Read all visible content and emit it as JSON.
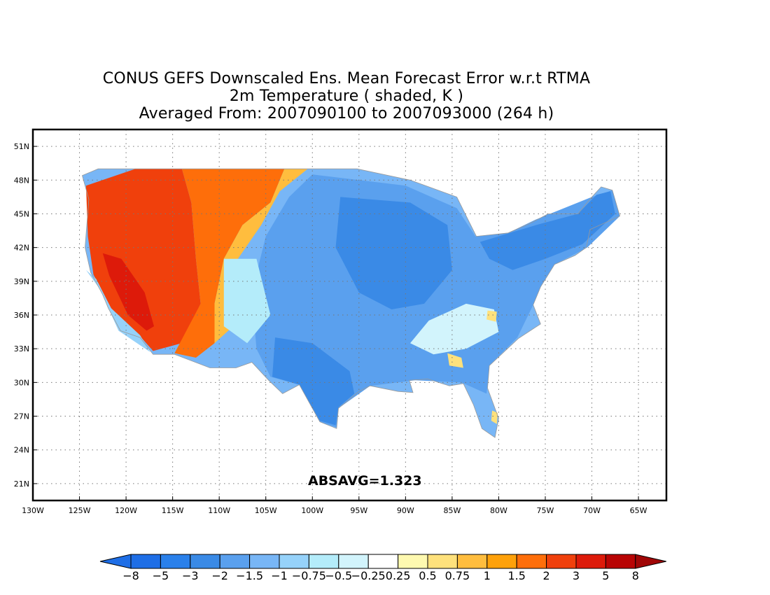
{
  "title": {
    "line1": "CONUS GEFS Downscaled Ens. Mean Forecast Error w.r.t RTMA",
    "line2": "2m Temperature ( shaded, K )",
    "line3": "Averaged From: 2007090100 to 2007093000 (264 h)"
  },
  "stat_text": "ABSAVG=1.323",
  "map": {
    "lon_range": [
      -130,
      -62
    ],
    "lat_range": [
      19.5,
      52.5
    ],
    "lon_ticks": [
      {
        "value": -130,
        "label": "130W"
      },
      {
        "value": -125,
        "label": "125W"
      },
      {
        "value": -120,
        "label": "120W"
      },
      {
        "value": -115,
        "label": "115W"
      },
      {
        "value": -110,
        "label": "110W"
      },
      {
        "value": -105,
        "label": "105W"
      },
      {
        "value": -100,
        "label": "100W"
      },
      {
        "value": -95,
        "label": "95W"
      },
      {
        "value": -90,
        "label": "90W"
      },
      {
        "value": -85,
        "label": "85W"
      },
      {
        "value": -80,
        "label": "80W"
      },
      {
        "value": -75,
        "label": "75W"
      },
      {
        "value": -70,
        "label": "70W"
      },
      {
        "value": -65,
        "label": "65W"
      }
    ],
    "lat_ticks": [
      {
        "value": 21,
        "label": "21N"
      },
      {
        "value": 24,
        "label": "24N"
      },
      {
        "value": 27,
        "label": "27N"
      },
      {
        "value": 30,
        "label": "30N"
      },
      {
        "value": 33,
        "label": "33N"
      },
      {
        "value": 36,
        "label": "36N"
      },
      {
        "value": 39,
        "label": "39N"
      },
      {
        "value": 42,
        "label": "42N"
      },
      {
        "value": 45,
        "label": "45N"
      },
      {
        "value": 48,
        "label": "48N"
      },
      {
        "value": 51,
        "label": "51N"
      }
    ],
    "grid": true,
    "conus_outline": [
      [
        -124.7,
        48.4
      ],
      [
        -123.0,
        49.0
      ],
      [
        -95.2,
        49.0
      ],
      [
        -89.5,
        48.0
      ],
      [
        -84.5,
        46.5
      ],
      [
        -82.4,
        43.0
      ],
      [
        -79.0,
        43.3
      ],
      [
        -76.5,
        44.2
      ],
      [
        -74.7,
        45.0
      ],
      [
        -71.5,
        45.0
      ],
      [
        -70.0,
        46.5
      ],
      [
        -69.0,
        47.4
      ],
      [
        -67.8,
        47.1
      ],
      [
        -67.0,
        44.8
      ],
      [
        -70.2,
        43.6
      ],
      [
        -70.6,
        42.0
      ],
      [
        -71.8,
        41.3
      ],
      [
        -74.0,
        40.5
      ],
      [
        -75.5,
        38.5
      ],
      [
        -76.3,
        36.9
      ],
      [
        -75.5,
        35.2
      ],
      [
        -77.9,
        33.9
      ],
      [
        -81.0,
        31.5
      ],
      [
        -81.2,
        29.5
      ],
      [
        -80.0,
        26.8
      ],
      [
        -80.4,
        25.1
      ],
      [
        -81.8,
        25.9
      ],
      [
        -82.7,
        28.0
      ],
      [
        -83.8,
        29.9
      ],
      [
        -85.3,
        29.7
      ],
      [
        -87.6,
        30.3
      ],
      [
        -89.6,
        30.2
      ],
      [
        -89.2,
        29.1
      ],
      [
        -90.8,
        29.2
      ],
      [
        -93.8,
        29.7
      ],
      [
        -95.0,
        29.2
      ],
      [
        -97.2,
        27.7
      ],
      [
        -97.4,
        25.9
      ],
      [
        -99.2,
        26.5
      ],
      [
        -101.4,
        29.8
      ],
      [
        -103.2,
        29.0
      ],
      [
        -104.7,
        30.2
      ],
      [
        -106.5,
        31.8
      ],
      [
        -108.2,
        31.3
      ],
      [
        -111.0,
        31.3
      ],
      [
        -114.8,
        32.5
      ],
      [
        -117.1,
        32.5
      ],
      [
        -118.5,
        34.0
      ],
      [
        -120.6,
        34.6
      ],
      [
        -121.9,
        36.6
      ],
      [
        -122.5,
        37.8
      ],
      [
        -123.8,
        39.8
      ],
      [
        -124.4,
        42.0
      ],
      [
        -124.0,
        46.3
      ],
      [
        -124.7,
        48.4
      ]
    ],
    "error_regions": [
      {
        "level": "2 to 3",
        "color": "#f0400c",
        "polygon": [
          [
            -124.3,
            47.5
          ],
          [
            -119,
            49
          ],
          [
            -114,
            49
          ],
          [
            -113,
            46
          ],
          [
            -112.5,
            41
          ],
          [
            -112,
            37
          ],
          [
            -114,
            33.5
          ],
          [
            -117.1,
            32.8
          ],
          [
            -118.7,
            34.3
          ],
          [
            -121.6,
            36.6
          ],
          [
            -123.5,
            39.6
          ],
          [
            -124.1,
            43
          ]
        ]
      },
      {
        "level": "1.5 to 2",
        "color": "#fe6e0a",
        "polygon": [
          [
            -114,
            49
          ],
          [
            -103,
            49
          ],
          [
            -104.5,
            46
          ],
          [
            -107.5,
            44
          ],
          [
            -109.5,
            41
          ],
          [
            -110.5,
            37
          ],
          [
            -110.5,
            33.5
          ],
          [
            -112.5,
            32.2
          ],
          [
            -114.8,
            32.6
          ],
          [
            -112,
            37
          ],
          [
            -112.5,
            41
          ],
          [
            -113,
            46
          ]
        ]
      },
      {
        "level": "0.75 to 1",
        "color": "#ffbd3e",
        "polygon": [
          [
            -103,
            49
          ],
          [
            -100.5,
            49
          ],
          [
            -103.5,
            47
          ],
          [
            -105.5,
            44
          ],
          [
            -108,
            41
          ],
          [
            -107,
            37.5
          ],
          [
            -108.5,
            35
          ],
          [
            -110.5,
            33.5
          ],
          [
            -110.5,
            37
          ],
          [
            -109.5,
            41
          ],
          [
            -107.5,
            44
          ],
          [
            -104.5,
            46
          ]
        ]
      },
      {
        "level": "3 to 5",
        "color": "#dd1a0a",
        "polygon": [
          [
            -122.5,
            41.5
          ],
          [
            -120.5,
            41
          ],
          [
            -118,
            38
          ],
          [
            -117,
            35
          ],
          [
            -117.8,
            34.6
          ],
          [
            -119.8,
            36
          ],
          [
            -121.8,
            39.5
          ]
        ]
      },
      {
        "level": "-2 to -1.5",
        "color": "#5aa0ee",
        "polygon": [
          [
            -100,
            48.5
          ],
          [
            -90,
            47.5
          ],
          [
            -84.5,
            45.5
          ],
          [
            -82.5,
            43
          ],
          [
            -79,
            43.3
          ],
          [
            -76,
            44.5
          ],
          [
            -70,
            46.5
          ],
          [
            -67.8,
            47.1
          ],
          [
            -67,
            44.8
          ],
          [
            -70.5,
            42
          ],
          [
            -74,
            40.5
          ],
          [
            -75.5,
            38.5
          ],
          [
            -76.3,
            36.9
          ],
          [
            -78,
            34
          ],
          [
            -81,
            31.5
          ],
          [
            -81.3,
            29
          ],
          [
            -84,
            30
          ],
          [
            -89,
            30.2
          ],
          [
            -93.8,
            29.7
          ],
          [
            -97.2,
            27.7
          ],
          [
            -97.4,
            26
          ],
          [
            -99.2,
            26.5
          ],
          [
            -101.4,
            29.8
          ],
          [
            -104.5,
            30.5
          ],
          [
            -106,
            33
          ],
          [
            -106.5,
            38
          ],
          [
            -105,
            43
          ],
          [
            -102.5,
            46.5
          ]
        ]
      },
      {
        "level": "-3 to -2",
        "color": "#3a8ae6",
        "polygon": [
          [
            -97,
            46.5
          ],
          [
            -89.5,
            46
          ],
          [
            -85.5,
            44
          ],
          [
            -85,
            40
          ],
          [
            -88,
            37
          ],
          [
            -91.5,
            36.5
          ],
          [
            -95,
            38
          ],
          [
            -97.5,
            42
          ]
        ]
      },
      {
        "level": "-3 to -2",
        "color": "#3a8ae6",
        "polygon": [
          [
            -82,
            42.5
          ],
          [
            -76,
            44
          ],
          [
            -71.5,
            45
          ],
          [
            -69.5,
            46.7
          ],
          [
            -68,
            47
          ],
          [
            -67.5,
            45
          ],
          [
            -71,
            42.3
          ],
          [
            -75,
            41
          ],
          [
            -78.5,
            40
          ],
          [
            -81,
            41
          ]
        ]
      },
      {
        "level": "-3 to -2",
        "color": "#3a8ae6",
        "polygon": [
          [
            -104,
            34
          ],
          [
            -100,
            33.5
          ],
          [
            -96,
            31
          ],
          [
            -95.5,
            29
          ],
          [
            -97.2,
            27.8
          ],
          [
            -97.5,
            26.2
          ],
          [
            -99.2,
            26.6
          ],
          [
            -101.4,
            29.8
          ],
          [
            -104.3,
            30.5
          ]
        ]
      },
      {
        "level": "-0.5 to -0.25",
        "color": "#d2f4fc",
        "polygon": [
          [
            -83.5,
            37
          ],
          [
            -80.5,
            36.5
          ],
          [
            -80,
            34.5
          ],
          [
            -83.5,
            33
          ],
          [
            -87,
            32.5
          ],
          [
            -89.5,
            33.5
          ],
          [
            -87.5,
            35.5
          ]
        ]
      },
      {
        "level": "-0.75 to -0.5",
        "color": "#b4ecfa",
        "polygon": [
          [
            -109.5,
            41
          ],
          [
            -106,
            41
          ],
          [
            -104.5,
            36
          ],
          [
            -107,
            33.5
          ],
          [
            -109.5,
            35
          ]
        ]
      },
      {
        "level": "-1 to -0.75",
        "color": "#96d2fa",
        "polygon": [
          [
            -124.3,
            40
          ],
          [
            -122.8,
            38.3
          ],
          [
            -120.8,
            34.6
          ],
          [
            -117.4,
            32.7
          ],
          [
            -118.5,
            34.2
          ],
          [
            -121.6,
            36.6
          ],
          [
            -123.2,
            39.2
          ]
        ]
      },
      {
        "level": "0.5 to 0.75",
        "color": "#fee17c",
        "polygon": [
          [
            -85.5,
            32.6
          ],
          [
            -84,
            32.2
          ],
          [
            -83.8,
            31.3
          ],
          [
            -85.3,
            31.5
          ]
        ]
      },
      {
        "level": "0.5 to 0.75",
        "color": "#fee17c",
        "polygon": [
          [
            -81.2,
            36.4
          ],
          [
            -80.2,
            36.3
          ],
          [
            -80.3,
            35.4
          ],
          [
            -81.3,
            35.6
          ]
        ]
      },
      {
        "level": "0.5 to 0.75",
        "color": "#fee17c",
        "polygon": [
          [
            -80.7,
            27.5
          ],
          [
            -80.1,
            27.3
          ],
          [
            -80.2,
            26.3
          ],
          [
            -80.8,
            26.6
          ]
        ]
      }
    ]
  },
  "colorbar": {
    "labels": [
      "−8",
      "−5",
      "−3",
      "−2",
      "−1.5",
      "−1",
      "−0.75",
      "−0.5",
      "−0.25",
      "0.25",
      "0.5",
      "0.75",
      "1",
      "1.5",
      "2",
      "3",
      "5",
      "8"
    ],
    "colors": [
      "#1e6ee6",
      "#2a80ea",
      "#3a8ae6",
      "#5aa0ee",
      "#78b6f6",
      "#96d2fa",
      "#b4ecfa",
      "#d2f4fc",
      "#ffffff",
      "#fef9b0",
      "#fee17c",
      "#ffbd3e",
      "#fea10a",
      "#fe6e0a",
      "#f0400c",
      "#dd1a0a",
      "#b80404"
    ],
    "low_arrow_color": "#1e6ee6",
    "high_arrow_color": "#a00606"
  }
}
